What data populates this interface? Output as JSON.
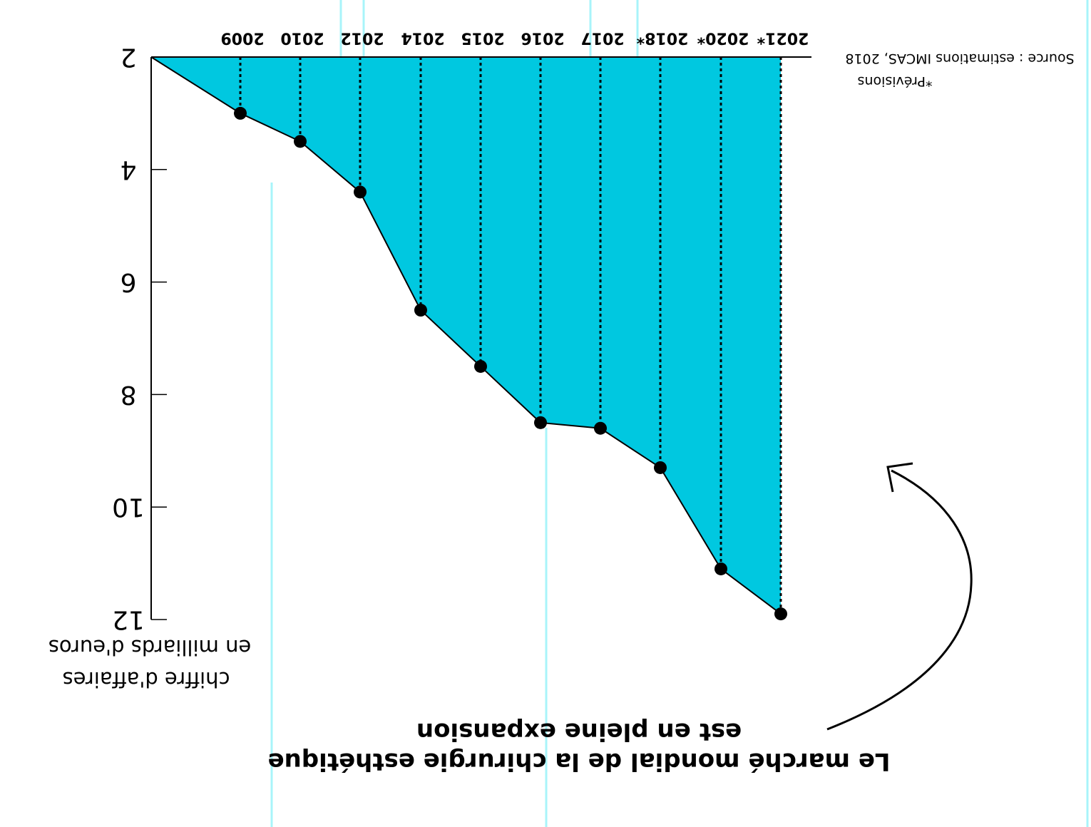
{
  "chart_data": {
    "type": "area",
    "title": "Le marché mondial de la chirurgie esthétique",
    "subtitle": "est en pleine expansion",
    "ylabel": [
      "chiffre d'affaires",
      "en milliards d'euros"
    ],
    "source": "Source : estimations IMCAS, 2018",
    "footnote": "*Prévisions",
    "categories": [
      "2009",
      "2010",
      "2012",
      "2014",
      "2015",
      "2016",
      "2017",
      "2018*",
      "2020*",
      "2021*"
    ],
    "values": [
      3.0,
      3.5,
      4.4,
      6.5,
      7.5,
      8.5,
      8.6,
      9.3,
      11.1,
      11.9
    ],
    "ylim": [
      2,
      12
    ],
    "yticks": [
      2,
      4,
      6,
      8,
      10,
      12
    ],
    "ytick_labels": [
      "2",
      "4",
      "6",
      "8",
      "10",
      "12"
    ],
    "colors": {
      "area": "#00c8e0",
      "line": "#000000",
      "guides": "#a8f4fa"
    },
    "grid": false,
    "orientation": "image rotated 180 degrees"
  }
}
